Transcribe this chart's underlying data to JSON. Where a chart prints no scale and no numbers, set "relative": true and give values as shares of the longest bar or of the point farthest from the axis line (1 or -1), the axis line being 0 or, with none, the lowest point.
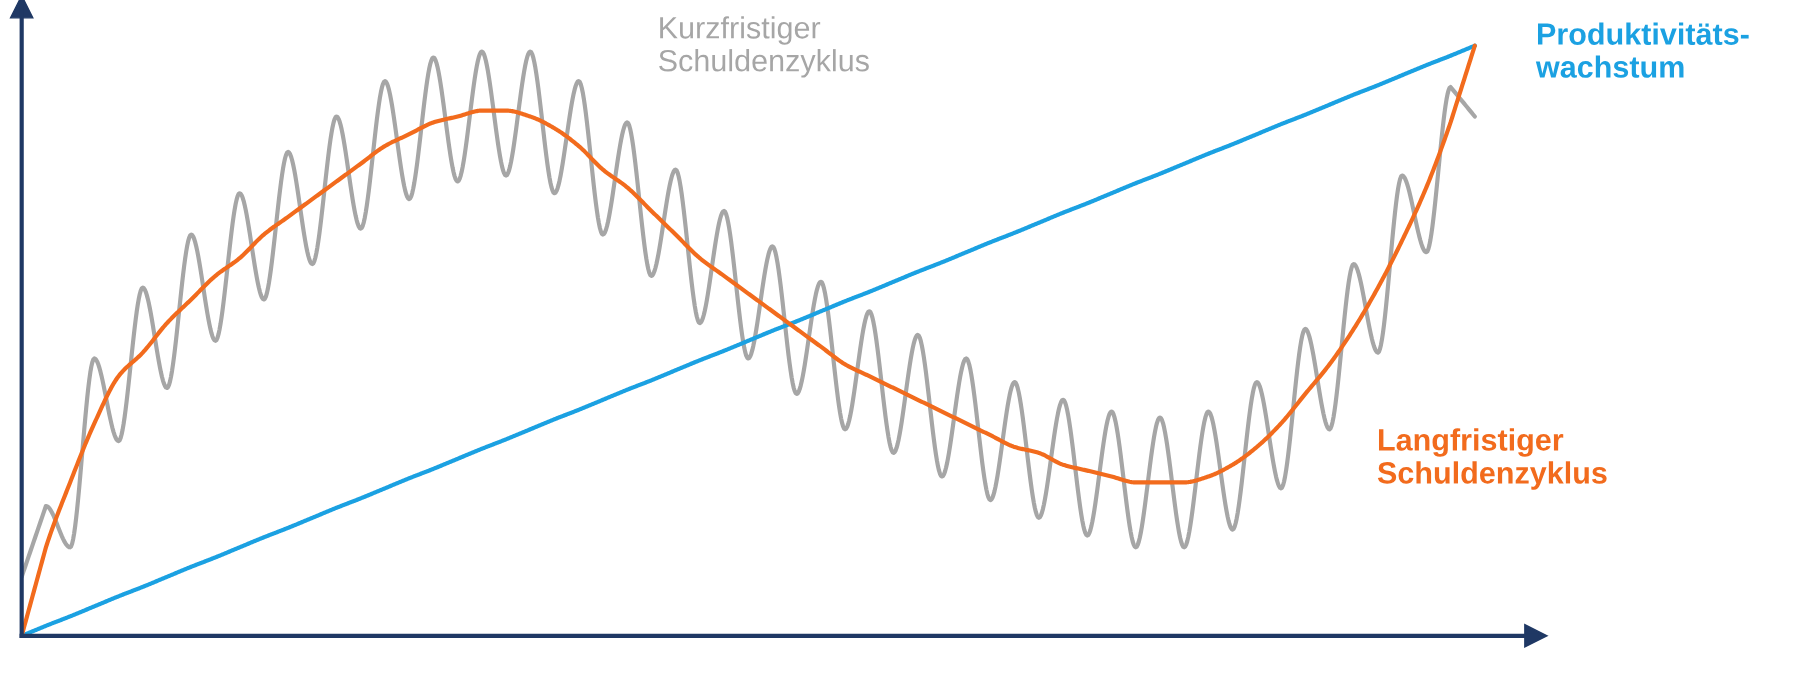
{
  "chart_data": {
    "type": "line",
    "relative": true,
    "categories": [
      null,
      null,
      null,
      null,
      null,
      null,
      null,
      null,
      null,
      null,
      null,
      null,
      null,
      null,
      null,
      null,
      null,
      null,
      null,
      null,
      null,
      null,
      null,
      null,
      null,
      null,
      null,
      null,
      null,
      null,
      null,
      null,
      null,
      null,
      null,
      null,
      null,
      null,
      null,
      null,
      null,
      null,
      null,
      null,
      null,
      null,
      null,
      null,
      null,
      null,
      null,
      null,
      null,
      null,
      null,
      null,
      null,
      null,
      null,
      null,
      null
    ],
    "series": [
      {
        "name": "Kurzfristiger\nSchuldenzyklus",
        "color": "#a6a6a6",
        "values": [
          0.1,
          0.22,
          0.15,
          0.47,
          0.33,
          0.59,
          0.42,
          0.68,
          0.5,
          0.75,
          0.57,
          0.82,
          0.63,
          0.88,
          0.69,
          0.94,
          0.74,
          0.98,
          0.77,
          0.99,
          0.78,
          0.99,
          0.75,
          0.94,
          0.68,
          0.87,
          0.61,
          0.79,
          0.53,
          0.72,
          0.47,
          0.66,
          0.41,
          0.6,
          0.35,
          0.55,
          0.31,
          0.51,
          0.27,
          0.47,
          0.23,
          0.43,
          0.2,
          0.4,
          0.17,
          0.38,
          0.15,
          0.37,
          0.15,
          0.38,
          0.18,
          0.43,
          0.25,
          0.52,
          0.35,
          0.63,
          0.48,
          0.78,
          0.65,
          0.93,
          0.88
        ]
      },
      {
        "name": "Produktivitäts-\nwachstum",
        "color": "#1ba1e2",
        "values": [
          0,
          0.017,
          0.033,
          0.05,
          0.067,
          0.083,
          0.1,
          0.117,
          0.133,
          0.15,
          0.167,
          0.183,
          0.2,
          0.217,
          0.233,
          0.25,
          0.267,
          0.283,
          0.3,
          0.317,
          0.333,
          0.35,
          0.367,
          0.383,
          0.4,
          0.417,
          0.433,
          0.45,
          0.467,
          0.483,
          0.5,
          0.517,
          0.533,
          0.55,
          0.567,
          0.583,
          0.6,
          0.617,
          0.633,
          0.65,
          0.667,
          0.683,
          0.7,
          0.717,
          0.733,
          0.75,
          0.767,
          0.783,
          0.8,
          0.817,
          0.833,
          0.85,
          0.867,
          0.883,
          0.9,
          0.917,
          0.933,
          0.95,
          0.967,
          0.983,
          1.0
        ]
      },
      {
        "name": "Langfristiger\nSchuldenzyklus",
        "color": "#f26b1d",
        "values": [
          0,
          0.15,
          0.26,
          0.36,
          0.44,
          0.48,
          0.53,
          0.57,
          0.61,
          0.64,
          0.68,
          0.71,
          0.74,
          0.77,
          0.8,
          0.83,
          0.85,
          0.87,
          0.88,
          0.89,
          0.89,
          0.88,
          0.86,
          0.83,
          0.79,
          0.76,
          0.72,
          0.68,
          0.64,
          0.61,
          0.58,
          0.55,
          0.52,
          0.49,
          0.46,
          0.44,
          0.42,
          0.4,
          0.38,
          0.36,
          0.34,
          0.32,
          0.31,
          0.29,
          0.28,
          0.27,
          0.26,
          0.26,
          0.26,
          0.27,
          0.29,
          0.32,
          0.36,
          0.41,
          0.46,
          0.52,
          0.59,
          0.67,
          0.76,
          0.87,
          1.0
        ]
      }
    ],
    "legend": false
  }
}
